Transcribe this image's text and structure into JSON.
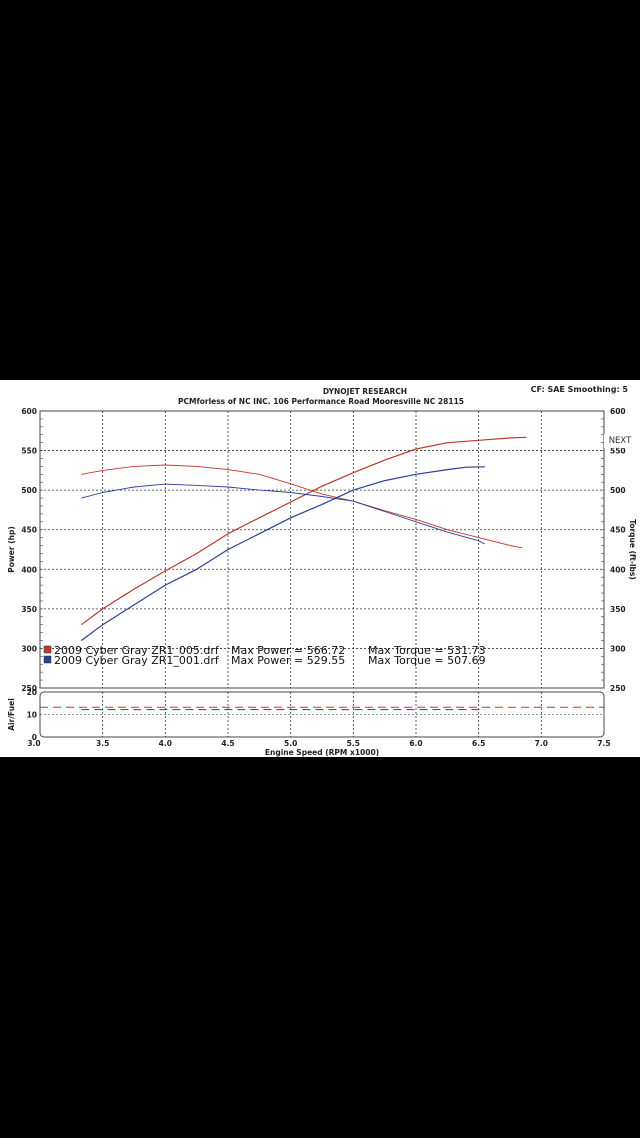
{
  "header": {
    "title": "DYNOJET RESEARCH",
    "subtitle": "PCMforless of NC INC. 106 Performance Road Mooresville NC 28115",
    "settings": "CF: SAE  Smoothing: 5"
  },
  "nav": {
    "next_label": "NEXT"
  },
  "colors": {
    "run1": "#c0392b",
    "run2": "#2c3e9e",
    "grid": "#333333",
    "background": "#000000"
  },
  "chart_data": [
    {
      "type": "line",
      "name": "power-torque",
      "xlabel": "Engine Speed (RPM x1000)",
      "ylabel_left": "Power (hp)",
      "ylabel_right": "Torque (ft-lbs)",
      "xlim": [
        3.0,
        7.5
      ],
      "ylim": [
        250,
        600
      ],
      "xticks": [
        "3.0",
        "3.5",
        "4.0",
        "4.5",
        "5.0",
        "5.5",
        "6.0",
        "6.5",
        "7.0",
        "7.5"
      ],
      "yticks_left": [
        "250",
        "300",
        "350",
        "400",
        "450",
        "500",
        "550",
        "600"
      ],
      "yticks_right": [
        "250",
        "300",
        "350",
        "400",
        "450",
        "500",
        "550",
        "600"
      ],
      "grid": true,
      "legend": [
        {
          "file": "2009 Cyber Gray ZR1_005.drf",
          "max_power": "Max Power = 566.72",
          "max_torque": "Max Torque = 531.73"
        },
        {
          "file": "2009 Cyber Gray ZR1_001.drf",
          "max_power": "Max Power = 529.55",
          "max_torque": "Max Torque = 507.69"
        }
      ],
      "series": [
        {
          "name": "2009 Cyber Gray ZR1_005.drf",
          "quantity": "power",
          "x": [
            3.33,
            3.5,
            3.75,
            4.0,
            4.25,
            4.5,
            4.75,
            5.0,
            5.25,
            5.5,
            5.75,
            6.0,
            6.25,
            6.5,
            6.75,
            6.88
          ],
          "y": [
            330,
            350,
            375,
            398,
            420,
            445,
            465,
            485,
            505,
            522,
            538,
            552,
            560,
            563,
            566,
            566.72
          ]
        },
        {
          "name": "2009 Cyber Gray ZR1_005.drf",
          "quantity": "torque",
          "x": [
            3.33,
            3.5,
            3.75,
            4.0,
            4.25,
            4.5,
            4.75,
            5.0,
            5.25,
            5.5,
            5.75,
            6.0,
            6.25,
            6.5,
            6.75,
            6.85
          ],
          "y": [
            520,
            525,
            530,
            531.73,
            530,
            526,
            520,
            508,
            495,
            486,
            474,
            463,
            450,
            440,
            430,
            427
          ]
        },
        {
          "name": "2009 Cyber Gray ZR1_001.drf",
          "quantity": "power",
          "x": [
            3.33,
            3.5,
            3.75,
            4.0,
            4.25,
            4.5,
            4.75,
            5.0,
            5.25,
            5.5,
            5.75,
            6.0,
            6.25,
            6.4,
            6.55
          ],
          "y": [
            310,
            330,
            355,
            380,
            400,
            425,
            445,
            465,
            482,
            500,
            512,
            520,
            526,
            529,
            529.55
          ]
        },
        {
          "name": "2009 Cyber Gray ZR1_001.drf",
          "quantity": "torque",
          "x": [
            3.33,
            3.5,
            3.75,
            4.0,
            4.25,
            4.5,
            4.75,
            5.0,
            5.25,
            5.5,
            5.75,
            6.0,
            6.25,
            6.5,
            6.55
          ],
          "y": [
            490,
            497,
            504,
            507.69,
            506,
            504,
            500,
            497,
            492,
            486,
            473,
            460,
            447,
            436,
            432
          ]
        }
      ]
    },
    {
      "type": "line",
      "name": "air-fuel",
      "ylabel": "Air/Fuel",
      "xlim": [
        3.0,
        7.5
      ],
      "ylim": [
        0,
        20
      ],
      "yticks": [
        "0",
        "10",
        "20"
      ],
      "series": [
        {
          "name": "2009 Cyber Gray ZR1_005.drf",
          "x": [
            3.0,
            7.5
          ],
          "y": [
            13.2,
            13.2
          ]
        },
        {
          "name": "2009 Cyber Gray ZR1_001.drf",
          "x": [
            3.33,
            6.55
          ],
          "y": [
            12.2,
            12.2
          ]
        }
      ]
    }
  ]
}
